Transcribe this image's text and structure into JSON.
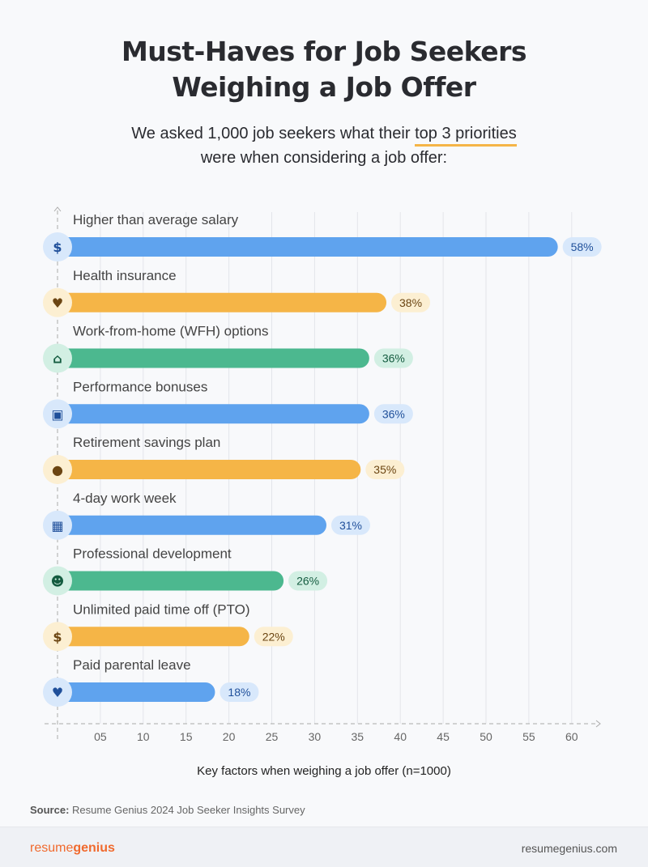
{
  "title_line1": "Must-Haves for Job Seekers",
  "title_line2": "Weighing a Job Offer",
  "subtitle_pre": "We asked 1,000 job seekers what their ",
  "subtitle_highlight": "top 3 priorities",
  "subtitle_line2": "were when considering a job offer:",
  "source_label": "Source:",
  "source_text": " Resume Genius 2024 Job Seeker Insights Survey",
  "logo_part1": "resume",
  "logo_part2": "genius",
  "url": "resumegenius.com",
  "colors": {
    "blue": "#5fa3ee",
    "orange": "#f5b547",
    "green": "#4cb88f",
    "blue_pill": "#d8e8fb",
    "orange_pill": "#fcefd2",
    "green_pill": "#d2efe3",
    "blue_text": "#1f4f9a",
    "orange_text": "#6b4512",
    "green_text": "#145c40"
  },
  "chart_data": {
    "type": "bar",
    "orientation": "horizontal",
    "xlabel": "Key factors when weighing a job offer (n=1000)",
    "xlim": [
      0,
      63
    ],
    "grid": true,
    "tick_labels": [
      "05",
      "10",
      "15",
      "20",
      "25",
      "30",
      "35",
      "40",
      "45",
      "50",
      "55",
      "60"
    ],
    "ticks": [
      5,
      10,
      15,
      20,
      25,
      30,
      35,
      40,
      45,
      50,
      55,
      60
    ],
    "bars": [
      {
        "label": "Higher than average salary",
        "value": 58,
        "value_label": "58%",
        "color": "blue",
        "icon": "money-bag-icon",
        "glyph": "$"
      },
      {
        "label": "Health insurance",
        "value": 38,
        "value_label": "38%",
        "color": "orange",
        "icon": "heart-pulse-icon",
        "glyph": "♥"
      },
      {
        "label": "Work-from-home (WFH) options",
        "value": 36,
        "value_label": "36%",
        "color": "green",
        "icon": "home-laptop-icon",
        "glyph": "⌂"
      },
      {
        "label": "Performance bonuses",
        "value": 36,
        "value_label": "36%",
        "color": "blue",
        "icon": "gift-icon",
        "glyph": "▣"
      },
      {
        "label": "Retirement savings plan",
        "value": 35,
        "value_label": "35%",
        "color": "orange",
        "icon": "piggy-bank-icon",
        "glyph": "●"
      },
      {
        "label": "4-day work week",
        "value": 31,
        "value_label": "31%",
        "color": "blue",
        "icon": "calendar-icon",
        "glyph": "▦"
      },
      {
        "label": "Professional development",
        "value": 26,
        "value_label": "26%",
        "color": "green",
        "icon": "brain-head-icon",
        "glyph": "☻"
      },
      {
        "label": "Unlimited paid time off (PTO)",
        "value": 22,
        "value_label": "22%",
        "color": "orange",
        "icon": "hands-dollar-icon",
        "glyph": "$"
      },
      {
        "label": "Paid parental leave",
        "value": 18,
        "value_label": "18%",
        "color": "blue",
        "icon": "parent-child-icon",
        "glyph": "♥"
      }
    ]
  }
}
